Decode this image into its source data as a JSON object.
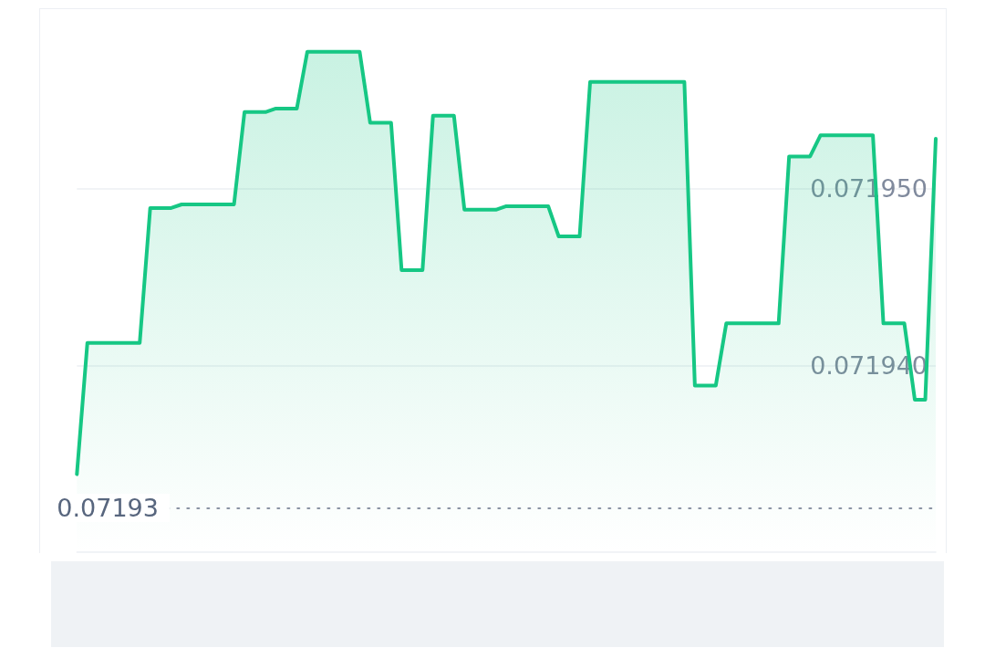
{
  "chart_data": {
    "type": "area",
    "categories": [
      null,
      null,
      null,
      null,
      null,
      null,
      null,
      null,
      null,
      null,
      null,
      null,
      null,
      null,
      null,
      null,
      null,
      null,
      null,
      null,
      null,
      null,
      null,
      null,
      null,
      null,
      null,
      null,
      null,
      null,
      null,
      null,
      null,
      null,
      null,
      null,
      null,
      null,
      null,
      null,
      null,
      null,
      null,
      null,
      null,
      null,
      null,
      null,
      null,
      null,
      null,
      null,
      null,
      null,
      null,
      null,
      null,
      null,
      null,
      null,
      null,
      null,
      null,
      null,
      null,
      null,
      null,
      null,
      null,
      null,
      null,
      null,
      null,
      null,
      null,
      null,
      null,
      null,
      null,
      null,
      null,
      null,
      null
    ],
    "values": [
      0.0719339,
      0.0719413,
      0.0719413,
      0.0719413,
      0.0719413,
      0.0719413,
      0.0719413,
      0.0719489,
      0.0719489,
      0.0719489,
      0.0719491,
      0.0719491,
      0.0719491,
      0.0719491,
      0.0719491,
      0.0719491,
      0.0719543,
      0.0719543,
      0.0719543,
      0.0719545,
      0.0719545,
      0.0719545,
      0.0719577,
      0.0719577,
      0.0719577,
      0.0719577,
      0.0719577,
      0.0719577,
      0.0719537,
      0.0719537,
      0.0719537,
      0.0719454,
      0.0719454,
      0.0719454,
      0.0719541,
      0.0719541,
      0.0719541,
      0.0719488,
      0.0719488,
      0.0719488,
      0.0719488,
      0.071949,
      0.071949,
      0.071949,
      0.071949,
      0.071949,
      0.0719473,
      0.0719473,
      0.0719473,
      0.071956,
      0.071956,
      0.071956,
      0.071956,
      0.071956,
      0.071956,
      0.071956,
      0.071956,
      0.071956,
      0.071956,
      0.0719389,
      0.0719389,
      0.0719389,
      0.0719424,
      0.0719424,
      0.0719424,
      0.0719424,
      0.0719424,
      0.0719424,
      0.0719518,
      0.0719518,
      0.0719518,
      0.071953,
      0.071953,
      0.071953,
      0.071953,
      0.071953,
      0.071953,
      0.0719424,
      0.0719424,
      0.0719424,
      0.0719381,
      0.0719381,
      0.0719528
    ],
    "color": "#16c784",
    "ylim": [
      0.0719295,
      0.07196
    ],
    "yticks": [
      {
        "value": 0.07194,
        "label": "0.071940"
      },
      {
        "value": 0.07195,
        "label": "0.071950"
      }
    ],
    "grid": "y",
    "tick_labels": "y",
    "marker": "none",
    "ref_lines": [
      {
        "axis": "y",
        "value": 0.071932,
        "label": "0.07193",
        "line_style": "dotted",
        "color": "#8a93a3"
      }
    ]
  }
}
